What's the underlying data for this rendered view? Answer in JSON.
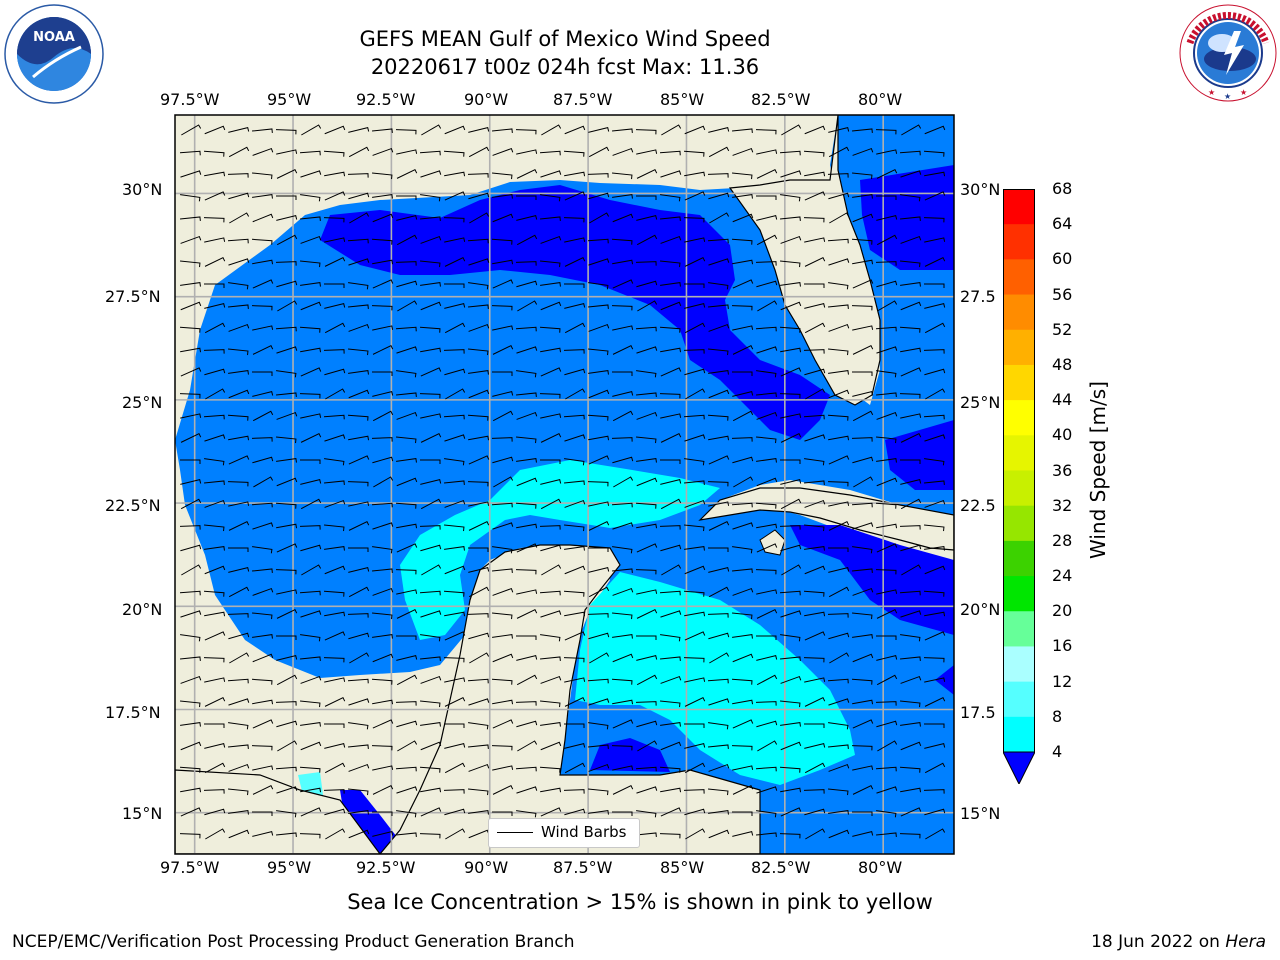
{
  "title": {
    "line1": "GEFS MEAN Gulf of Mexico Wind Speed",
    "line2": "20220617 t00z 024h fcst   Max: 11.36"
  },
  "logos": {
    "noaa": {
      "text": "NOAA",
      "ring_text": "NATIONAL OCEANIC AND ATMOSPHERIC ADMINISTRATION · U.S. DEPARTMENT OF COMMERCE"
    },
    "nws": {
      "ring_text": "NATIONAL WEATHER SERVICE"
    }
  },
  "map": {
    "lon_labels": [
      "97.5°W",
      "95°W",
      "92.5°W",
      "90°W",
      "87.5°W",
      "85°W",
      "82.5°W",
      "80°W"
    ],
    "lat_labels": [
      "30°N",
      "27.5°N",
      "25°N",
      "22.5°N",
      "20°N",
      "17.5°N",
      "15°N"
    ],
    "lat_labels_right": [
      "30°N",
      "27.5",
      "25°N",
      "22.5",
      "20°N",
      "17.5",
      "15°N"
    ],
    "legend_label": "Wind Barbs",
    "extent": {
      "lon": [
        -98,
        -78.2
      ],
      "lat": [
        14,
        31.9
      ]
    }
  },
  "colorbar": {
    "label": "Wind Speed [m/s]",
    "ticks": [
      "68",
      "64",
      "60",
      "56",
      "52",
      "48",
      "44",
      "40",
      "36",
      "32",
      "28",
      "24",
      "20",
      "16",
      "12",
      "8",
      "4"
    ],
    "colors": [
      "#ff0000",
      "#ff3000",
      "#ff6000",
      "#ff8c00",
      "#ffb000",
      "#ffd700",
      "#ffff00",
      "#e6f500",
      "#c8f000",
      "#96e600",
      "#3cd200",
      "#00e600",
      "#66ff99",
      "#aaffff",
      "#55ffff",
      "#00ffff",
      "#0080ff"
    ],
    "extend_color": "#0000ff"
  },
  "caption": "Sea Ice Concentration > 15% is shown in pink to yellow",
  "footer": {
    "left": "NCEP/EMC/Verification Post Processing Product Generation Branch",
    "right_date": "18 Jun 2022 on ",
    "right_machine": "Hera"
  }
}
